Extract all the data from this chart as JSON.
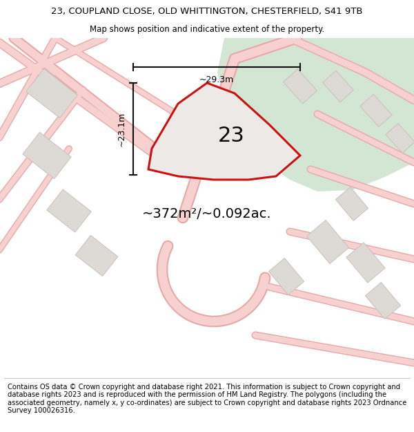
{
  "title_line1": "23, COUPLAND CLOSE, OLD WHITTINGTON, CHESTERFIELD, S41 9TB",
  "title_line2": "Map shows position and indicative extent of the property.",
  "area_label": "~372m²/~0.092ac.",
  "plot_number": "23",
  "dim_width": "~29.3m",
  "dim_height": "~23.1m",
  "footer_text": "Contains OS data © Crown copyright and database right 2021. This information is subject to Crown copyright and database rights 2023 and is reproduced with the permission of HM Land Registry. The polygons (including the associated geometry, namely x, y co-ordinates) are subject to Crown copyright and database rights 2023 Ordnance Survey 100026316.",
  "bg_color": "#ffffff",
  "map_bg": "#f2efef",
  "green_color": "#d3e5d3",
  "plot_fill": "#ede9e7",
  "plot_edge": "#cc1111",
  "road_fill": "#f7d0d0",
  "road_edge": "#e8a8a8",
  "building_fill": "#ddd9d5",
  "building_edge": "#c8c0bc",
  "dim_color": "#111111",
  "title_fontsize": 9.5,
  "subtitle_fontsize": 8.5,
  "footer_fontsize": 7.2,
  "area_fontsize": 14.0,
  "number_fontsize": 22.0,
  "dim_fontsize": 9.0
}
